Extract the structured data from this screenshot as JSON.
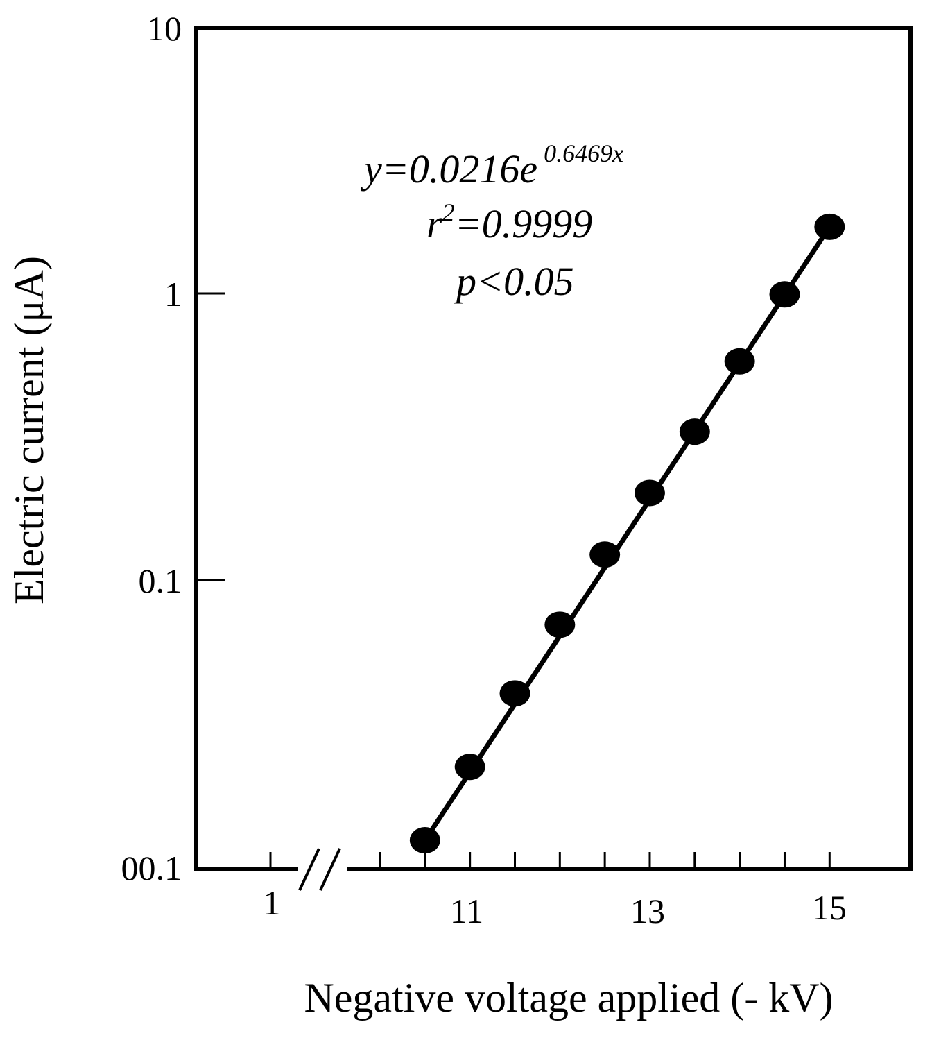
{
  "chart_data": {
    "type": "scatter",
    "title": "",
    "xlabel": "Negative voltage applied (- kV)",
    "ylabel": "Electric current (μA)",
    "y_scale": "log",
    "ylim": [
      0.01,
      10
    ],
    "xlim": [
      10.0,
      15.9
    ],
    "x_axis_break": true,
    "x_tick_labels": [
      "1",
      "11",
      "13",
      "15"
    ],
    "y_tick_labels": [
      "00.1",
      "0.1",
      "1",
      "10"
    ],
    "x_minor_ticks": [
      10.5,
      11.0,
      11.5,
      12.0,
      12.5,
      13.0,
      13.5,
      14.0,
      14.5,
      15.0
    ],
    "grid": false,
    "series": [
      {
        "type": "scatter",
        "x": [
          10.5,
          11.0,
          11.5,
          12.0,
          12.5,
          13.0,
          13.5,
          14.0,
          14.5,
          15.0
        ],
        "y": [
          0.0127,
          0.0232,
          0.0424,
          0.0745,
          0.1325,
          0.2197,
          0.3632,
          0.6471,
          1.121,
          1.9515
        ]
      }
    ],
    "fit_line": {
      "x": [
        10.5,
        15.0
      ],
      "y": [
        0.0127,
        1.9515
      ]
    },
    "annotations": {
      "equation_main": "y=0.0216e",
      "equation_exponent": " 0.6469x",
      "r2_prefix": "r",
      "r2_sup": "2",
      "r2_value": "=0.9999",
      "p_value": "p<0.05"
    }
  }
}
